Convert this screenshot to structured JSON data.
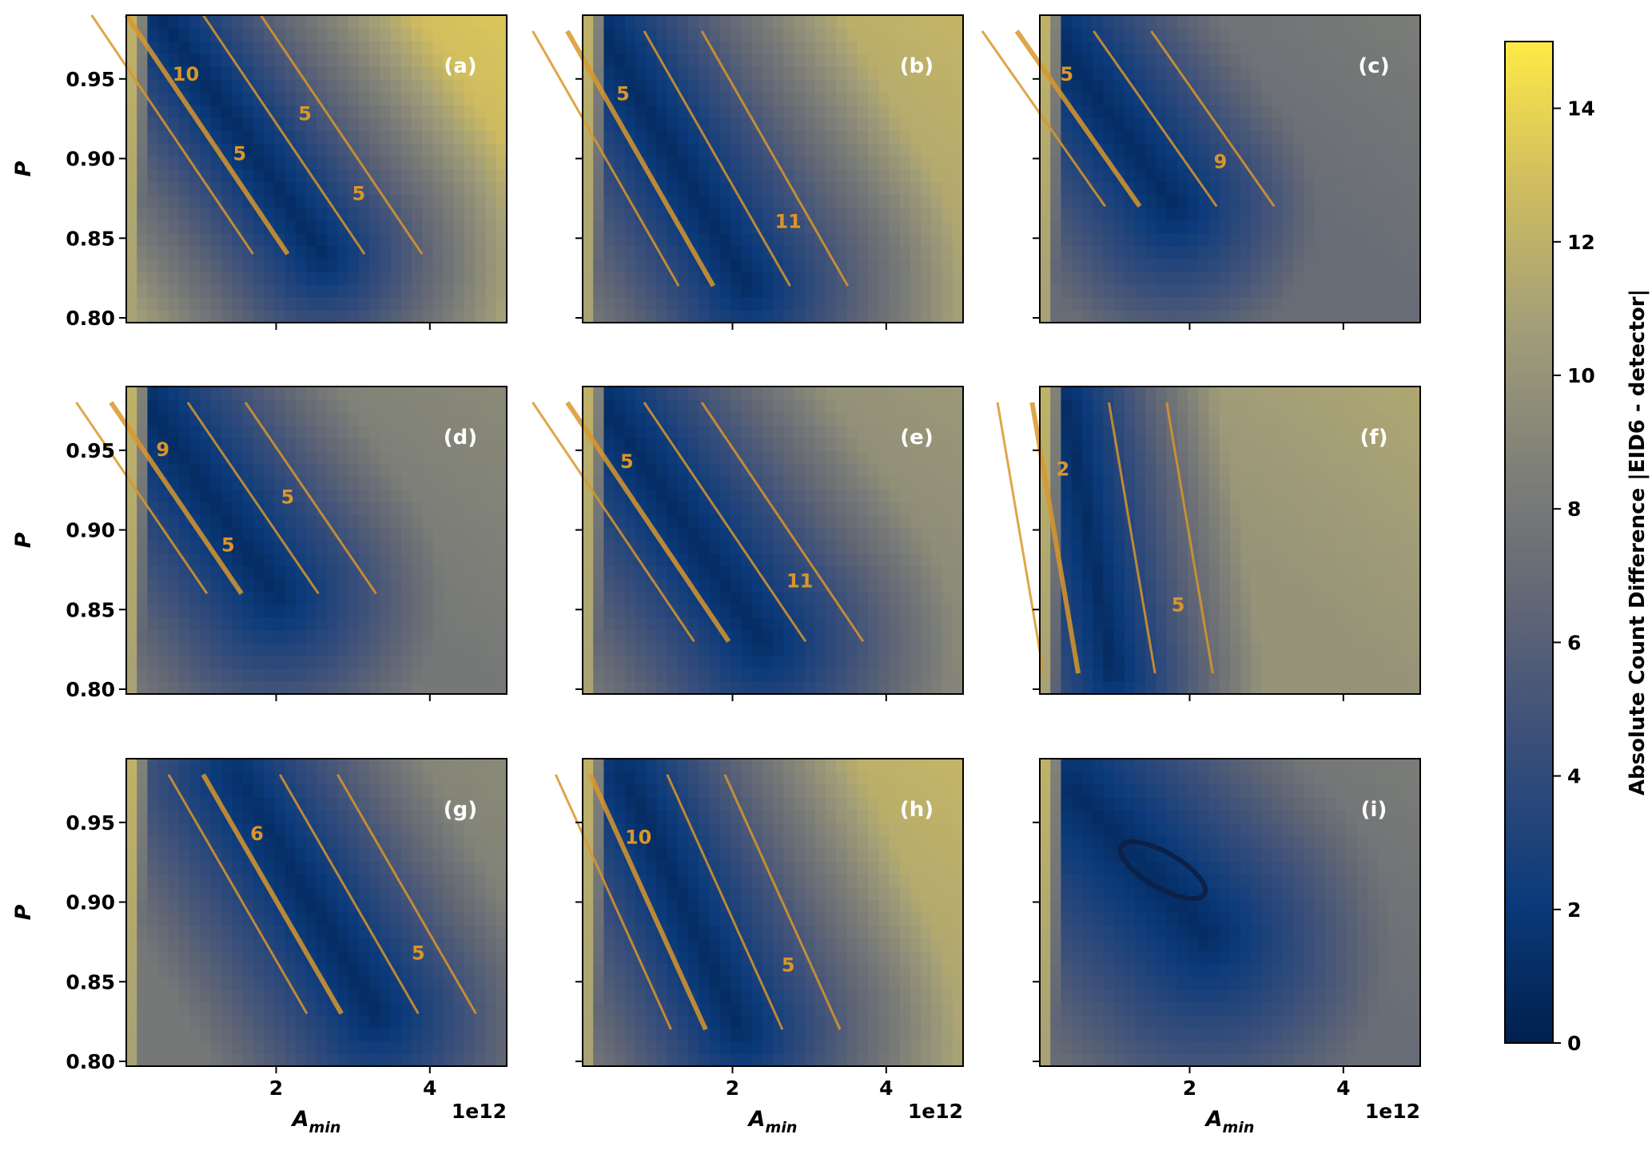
{
  "chart_data": {
    "type": "heatmap",
    "x_axis": {
      "label_main": "A",
      "label_sub": "min",
      "ticks": [
        2,
        4
      ],
      "tick_labels": [
        "2",
        "4"
      ],
      "offset_text": "1e12",
      "range": [
        0.05,
        5.0
      ]
    },
    "y_axis": {
      "label": "P",
      "ticks": [
        0.8,
        0.85,
        0.9,
        0.95
      ],
      "tick_labels": [
        "0.80",
        "0.85",
        "0.90",
        "0.95"
      ],
      "range": [
        0.797,
        0.99
      ]
    },
    "grid_size": [
      24,
      36
    ],
    "colorbar": {
      "label": "Absolute Count Difference |EID6 - detector|",
      "range": [
        0,
        15
      ],
      "ticks": [
        0,
        2,
        4,
        6,
        8,
        10,
        12,
        14
      ],
      "tick_labels": [
        "0",
        "2",
        "4",
        "6",
        "8",
        "10",
        "12",
        "14"
      ],
      "colormap": "cividis"
    },
    "panels": [
      {
        "id": "a",
        "label": "(a)",
        "contour_labels": [
          "10",
          "5",
          "5",
          "5"
        ],
        "valley": [
          [
            0.5,
            0.99
          ],
          [
            2.6,
            0.84
          ]
        ],
        "valley_width": 0.8,
        "level_far": 12
      },
      {
        "id": "b",
        "label": "(b)",
        "contour_labels": [
          "5",
          "11"
        ],
        "valley": [
          [
            0.3,
            0.98
          ],
          [
            2.2,
            0.82
          ]
        ],
        "valley_width": 0.9,
        "level_far": 11
      },
      {
        "id": "c",
        "label": "(c)",
        "contour_labels": [
          "5",
          "9"
        ],
        "valley": [
          [
            0.2,
            0.98
          ],
          [
            1.8,
            0.87
          ]
        ],
        "valley_width": 1.0,
        "level_far": 7
      },
      {
        "id": "d",
        "label": "(d)",
        "contour_labels": [
          "9",
          "5",
          "5"
        ],
        "valley": [
          [
            0.3,
            0.98
          ],
          [
            2.0,
            0.86
          ]
        ],
        "valley_width": 1.0,
        "level_far": 8
      },
      {
        "id": "e",
        "label": "(e)",
        "contour_labels": [
          "5",
          "11"
        ],
        "valley": [
          [
            0.3,
            0.98
          ],
          [
            2.4,
            0.83
          ]
        ],
        "valley_width": 1.0,
        "level_far": 9
      },
      {
        "id": "f",
        "label": "(f)",
        "contour_labels": [
          "2",
          "5"
        ],
        "valley": [
          [
            0.4,
            0.98
          ],
          [
            1.0,
            0.81
          ]
        ],
        "valley_width": 0.7,
        "level_far": 10
      },
      {
        "id": "g",
        "label": "(g)",
        "contour_labels": [
          "6",
          "5"
        ],
        "valley": [
          [
            1.5,
            0.98
          ],
          [
            3.3,
            0.83
          ]
        ],
        "valley_width": 1.0,
        "level_far": 8
      },
      {
        "id": "h",
        "label": "(h)",
        "contour_labels": [
          "10",
          "5"
        ],
        "valley": [
          [
            0.6,
            0.98
          ],
          [
            2.1,
            0.82
          ]
        ],
        "valley_width": 0.9,
        "level_far": 11
      },
      {
        "id": "i",
        "label": "(i)",
        "contour_labels": [],
        "valley": [
          [
            0.5,
            0.97
          ],
          [
            2.2,
            0.88
          ]
        ],
        "valley_width": 1.3,
        "level_far": 7
      }
    ]
  }
}
